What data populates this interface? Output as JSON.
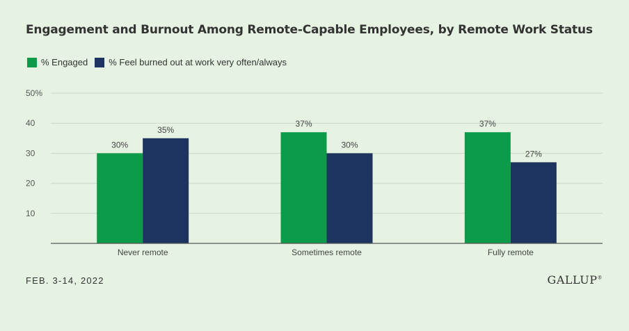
{
  "title": "Engagement and Burnout Among Remote-Capable Employees, by Remote Work Status",
  "footer": {
    "date": "FEB. 3-14, 2022",
    "brand": "GALLUP"
  },
  "chart_data": {
    "type": "bar",
    "categories": [
      "Never remote",
      "Sometimes remote",
      "Fully remote"
    ],
    "series": [
      {
        "name": "% Engaged",
        "values": [
          30,
          37,
          37
        ],
        "labels": [
          "30%",
          "37%",
          "37%"
        ],
        "color": "#0d9b4a"
      },
      {
        "name": "% Feel burned out at work very often/always",
        "values": [
          35,
          30,
          27
        ],
        "labels": [
          "35%",
          "30%",
          "27%"
        ],
        "color": "#1d3461"
      }
    ],
    "ylim": [
      0,
      50
    ],
    "yticks": [
      10,
      20,
      30,
      40,
      50
    ],
    "ytick_labels": [
      "10",
      "20",
      "30",
      "40",
      "50%"
    ],
    "grid": true,
    "legend": "top-left"
  }
}
